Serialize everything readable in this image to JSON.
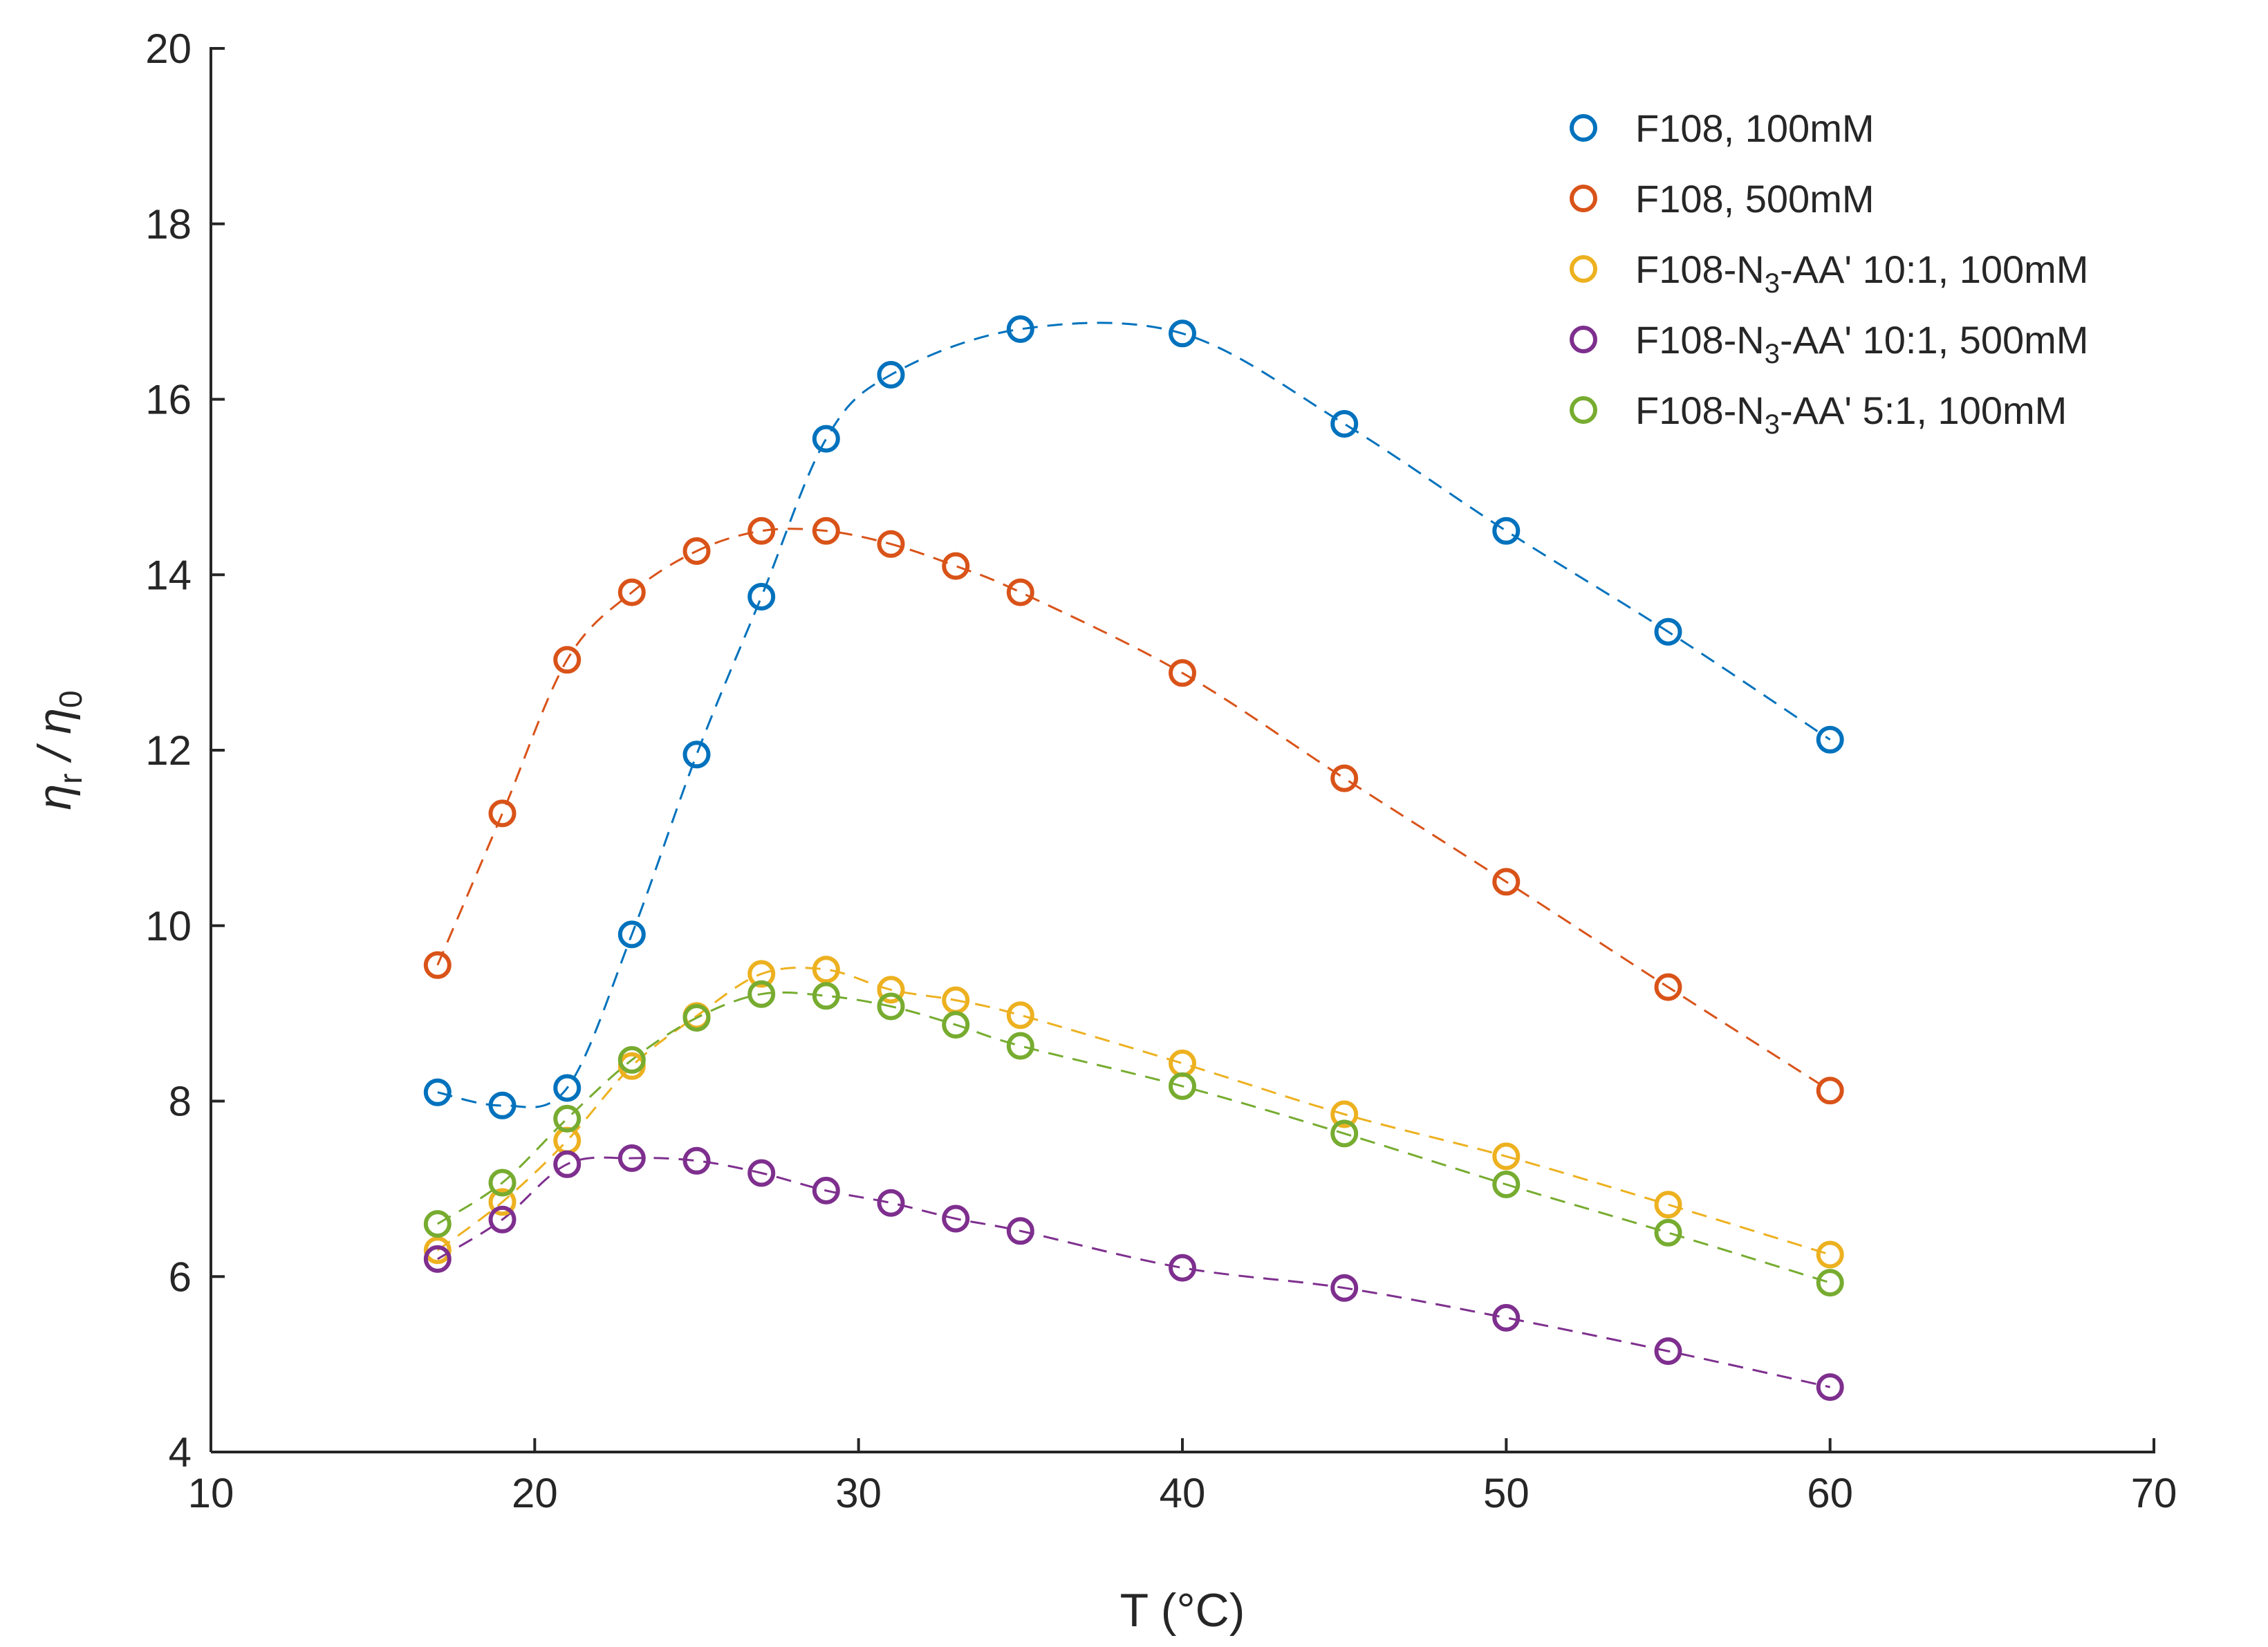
{
  "chart_data": {
    "type": "scatter",
    "title": "",
    "xlabel": "T (°C)",
    "ylabel": {
      "main": "η",
      "sub1": "r",
      "mid": " / η",
      "sub2": "0"
    },
    "xlim": [
      10,
      70
    ],
    "ylim": [
      4,
      20
    ],
    "xticks": [
      10,
      20,
      30,
      40,
      50,
      60,
      70
    ],
    "yticks": [
      4,
      6,
      8,
      10,
      12,
      14,
      16,
      18,
      20
    ],
    "grid": false,
    "legend_position": "top-right",
    "series": [
      {
        "name": "F108, 100mM",
        "label_parts": {
          "pre": "F108, 100mM",
          "sub": "",
          "post": ""
        },
        "color": "#0072BD",
        "x": [
          17,
          19,
          21,
          23,
          25,
          27,
          29,
          31,
          35,
          40,
          45,
          50,
          55,
          60
        ],
        "y": [
          8.1,
          7.95,
          8.15,
          9.9,
          11.95,
          13.75,
          15.55,
          16.28,
          16.8,
          16.75,
          15.72,
          14.5,
          13.35,
          12.12
        ]
      },
      {
        "name": "F108, 500mM",
        "label_parts": {
          "pre": "F108, 500mM",
          "sub": "",
          "post": ""
        },
        "color": "#D95319",
        "x": [
          17,
          19,
          21,
          23,
          25,
          27,
          29,
          31,
          33,
          35,
          40,
          45,
          50,
          55,
          60
        ],
        "y": [
          9.55,
          11.28,
          13.03,
          13.8,
          14.27,
          14.5,
          14.5,
          14.35,
          14.1,
          13.8,
          12.88,
          11.68,
          10.5,
          9.3,
          8.12
        ]
      },
      {
        "name": "F108-N3-AA' 10:1, 100mM",
        "label_parts": {
          "pre": "F108-N",
          "sub": "3",
          "post": "-AA' 10:1, 100mM"
        },
        "color": "#EDB120",
        "x": [
          17,
          19,
          21,
          23,
          25,
          27,
          29,
          31,
          33,
          35,
          40,
          45,
          50,
          55,
          60
        ],
        "y": [
          6.3,
          6.85,
          7.55,
          8.4,
          8.97,
          9.45,
          9.5,
          9.27,
          9.15,
          8.98,
          8.43,
          7.85,
          7.37,
          6.82,
          6.25
        ]
      },
      {
        "name": "F108-N3-AA' 10:1, 500mM",
        "label_parts": {
          "pre": "F108-N",
          "sub": "3",
          "post": "-AA' 10:1, 500mM"
        },
        "color": "#7E2F8E",
        "x": [
          17,
          19,
          21,
          23,
          25,
          27,
          29,
          31,
          33,
          35,
          40,
          45,
          50,
          55,
          60
        ],
        "y": [
          6.2,
          6.65,
          7.28,
          7.35,
          7.32,
          7.18,
          6.98,
          6.84,
          6.66,
          6.52,
          6.1,
          5.87,
          5.53,
          5.15,
          4.74
        ]
      },
      {
        "name": "F108-N3-AA' 5:1, 100mM",
        "label_parts": {
          "pre": "F108-N",
          "sub": "3",
          "post": "-AA' 5:1, 100mM"
        },
        "color": "#77AC30",
        "x": [
          17,
          19,
          21,
          23,
          25,
          27,
          29,
          31,
          33,
          35,
          40,
          45,
          50,
          55,
          60
        ],
        "y": [
          6.6,
          7.07,
          7.8,
          8.47,
          8.95,
          9.22,
          9.2,
          9.08,
          8.87,
          8.63,
          8.17,
          7.63,
          7.05,
          6.5,
          5.93
        ]
      }
    ]
  }
}
